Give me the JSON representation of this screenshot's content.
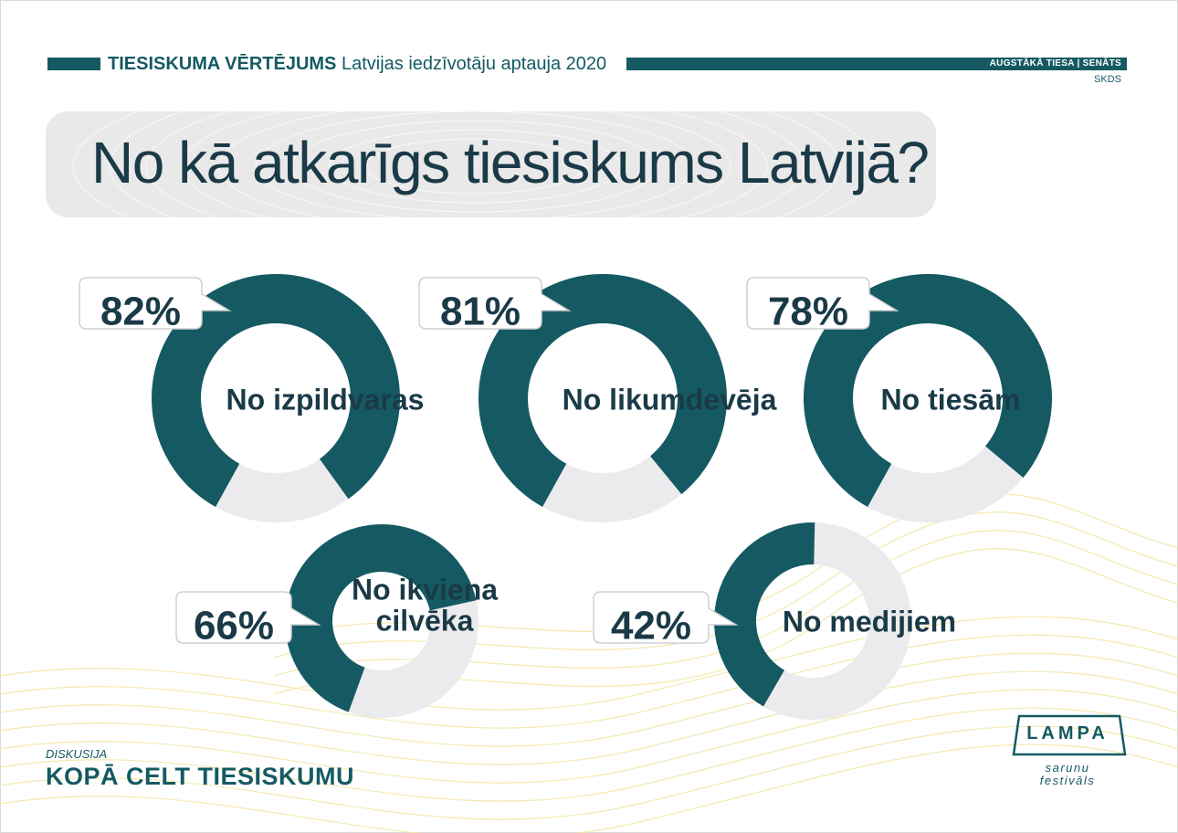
{
  "header": {
    "title_bold": "TIESISKUMA VĒRTĒJUMS",
    "title_rest": "Latvijas iedzīvotāju aptauja 2020",
    "publisher": "AUGSTĀKĀ TIESA | SENĀTS",
    "source": "SKDS"
  },
  "main": {
    "title": "No kā atkarīgs tiesiskums Latvijā?"
  },
  "footer": {
    "kicker": "DISKUSIJA",
    "slogan": "KOPĀ CELT TIESISKUMU"
  },
  "logo": {
    "word": "LAMPA",
    "sub1": "sarunu",
    "sub2": "festivāls"
  },
  "colors": {
    "accent": "#155a63",
    "remainder": "#ebebed",
    "dark_text": "#1b3a48"
  },
  "chart_data": [
    {
      "type": "pie",
      "title": "No izpildvaras",
      "value_percent": 82,
      "label": "82%"
    },
    {
      "type": "pie",
      "title": "No likumdevēja",
      "value_percent": 81,
      "label": "81%"
    },
    {
      "type": "pie",
      "title": "No tiesām",
      "value_percent": 78,
      "label": "78%"
    },
    {
      "type": "pie",
      "title_lines": [
        "No ikviena",
        "cilvēka"
      ],
      "value_percent": 66,
      "label": "66%"
    },
    {
      "type": "pie",
      "title": "No medijiem",
      "value_percent": 42,
      "label": "42%"
    }
  ]
}
